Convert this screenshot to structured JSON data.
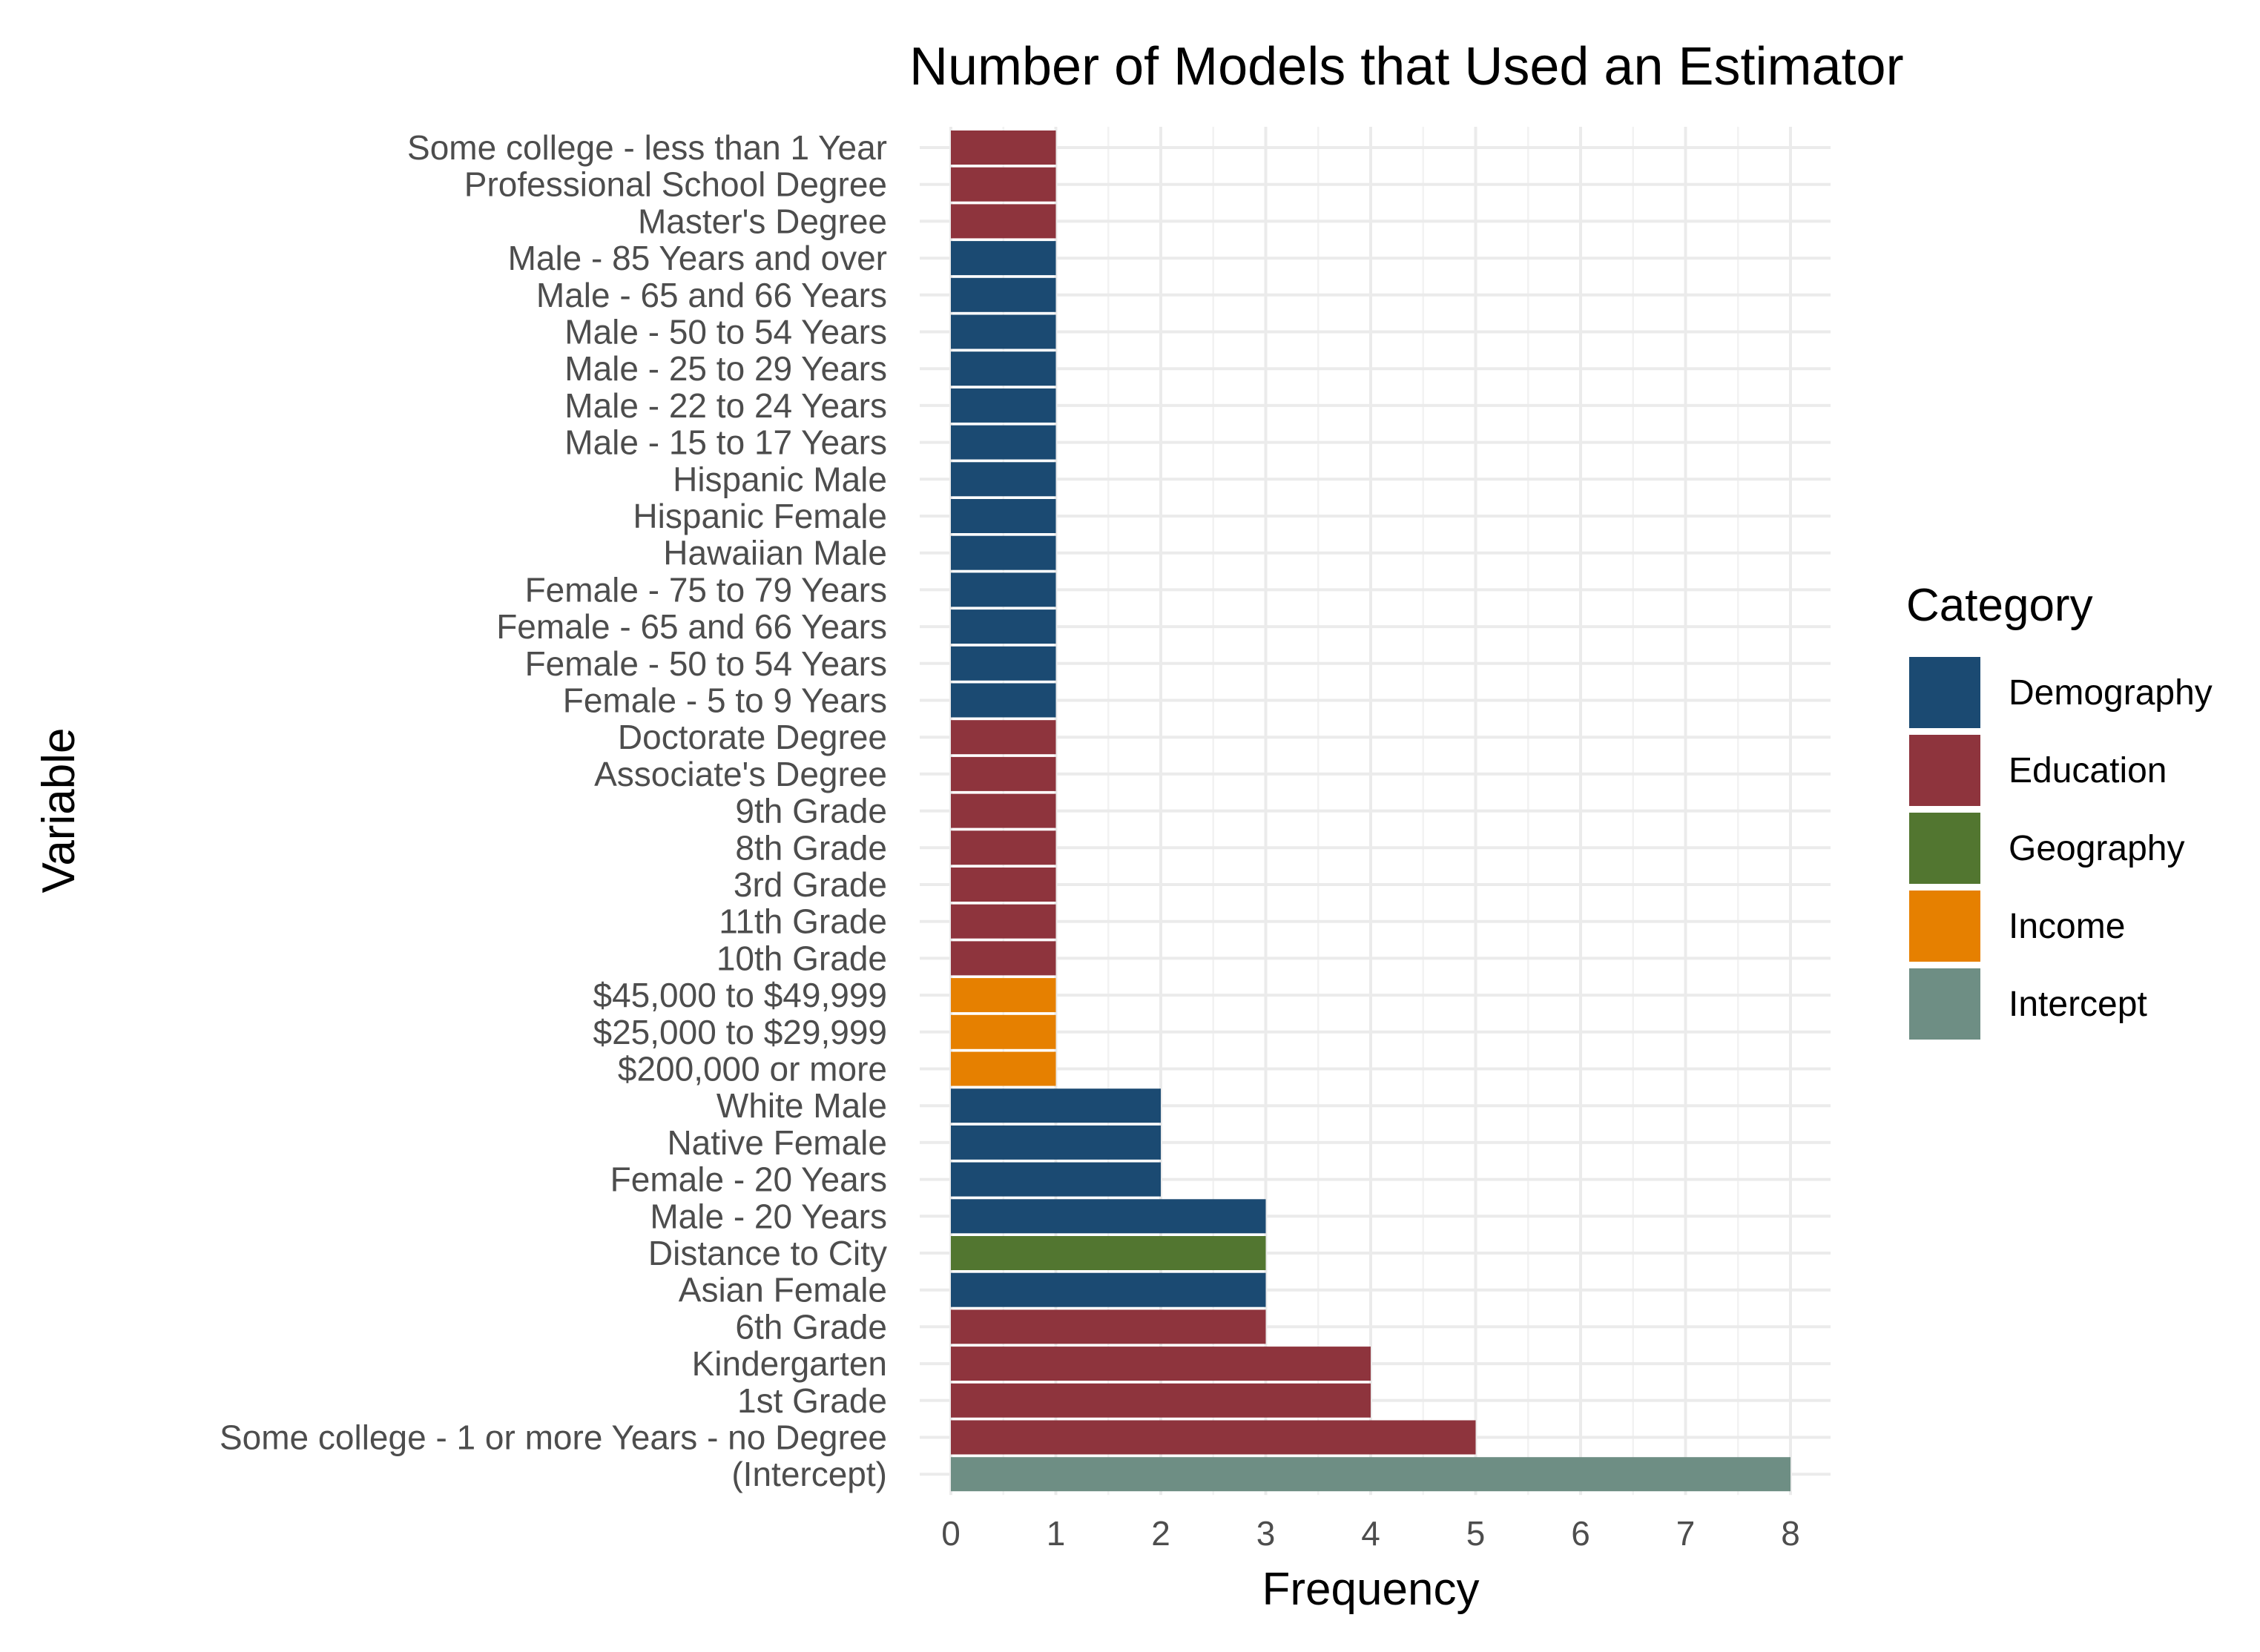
{
  "chart_data": {
    "type": "bar",
    "orientation": "horizontal",
    "title": "Number of Models that Used an Estimator",
    "xlabel": "Frequency",
    "ylabel": "Variable",
    "xlim": [
      0,
      8
    ],
    "xticks": [
      "0",
      "1",
      "2",
      "3",
      "4",
      "5",
      "6",
      "7",
      "8"
    ],
    "grid": true,
    "legend": {
      "title": "Category",
      "position": "right",
      "items": [
        {
          "label": "Demography",
          "color": "#1b4a72"
        },
        {
          "label": "Education",
          "color": "#8e343d"
        },
        {
          "label": "Geography",
          "color": "#527630"
        },
        {
          "label": "Income",
          "color": "#e68000"
        },
        {
          "label": "Intercept",
          "color": "#6e8e84"
        }
      ]
    },
    "bars": [
      {
        "label": "Some college - less than 1 Year",
        "value": 1,
        "category": "Education"
      },
      {
        "label": "Professional School Degree",
        "value": 1,
        "category": "Education"
      },
      {
        "label": "Master's Degree",
        "value": 1,
        "category": "Education"
      },
      {
        "label": "Male - 85 Years and over",
        "value": 1,
        "category": "Demography"
      },
      {
        "label": "Male - 65 and 66 Years",
        "value": 1,
        "category": "Demography"
      },
      {
        "label": "Male - 50 to 54 Years",
        "value": 1,
        "category": "Demography"
      },
      {
        "label": "Male - 25 to 29 Years",
        "value": 1,
        "category": "Demography"
      },
      {
        "label": "Male - 22 to 24 Years",
        "value": 1,
        "category": "Demography"
      },
      {
        "label": "Male - 15 to 17 Years",
        "value": 1,
        "category": "Demography"
      },
      {
        "label": "Hispanic Male",
        "value": 1,
        "category": "Demography"
      },
      {
        "label": "Hispanic Female",
        "value": 1,
        "category": "Demography"
      },
      {
        "label": "Hawaiian Male",
        "value": 1,
        "category": "Demography"
      },
      {
        "label": "Female - 75 to 79 Years",
        "value": 1,
        "category": "Demography"
      },
      {
        "label": "Female - 65 and 66 Years",
        "value": 1,
        "category": "Demography"
      },
      {
        "label": "Female - 50 to 54 Years",
        "value": 1,
        "category": "Demography"
      },
      {
        "label": "Female - 5 to 9 Years",
        "value": 1,
        "category": "Demography"
      },
      {
        "label": "Doctorate Degree",
        "value": 1,
        "category": "Education"
      },
      {
        "label": "Associate's Degree",
        "value": 1,
        "category": "Education"
      },
      {
        "label": "9th Grade",
        "value": 1,
        "category": "Education"
      },
      {
        "label": "8th Grade",
        "value": 1,
        "category": "Education"
      },
      {
        "label": "3rd Grade",
        "value": 1,
        "category": "Education"
      },
      {
        "label": "11th Grade",
        "value": 1,
        "category": "Education"
      },
      {
        "label": "10th Grade",
        "value": 1,
        "category": "Education"
      },
      {
        "label": "$45,000 to $49,999",
        "value": 1,
        "category": "Income"
      },
      {
        "label": "$25,000 to $29,999",
        "value": 1,
        "category": "Income"
      },
      {
        "label": "$200,000 or more",
        "value": 1,
        "category": "Income"
      },
      {
        "label": "White Male",
        "value": 2,
        "category": "Demography"
      },
      {
        "label": "Native Female",
        "value": 2,
        "category": "Demography"
      },
      {
        "label": "Female - 20 Years",
        "value": 2,
        "category": "Demography"
      },
      {
        "label": "Male - 20 Years",
        "value": 3,
        "category": "Demography"
      },
      {
        "label": "Distance to City",
        "value": 3,
        "category": "Geography"
      },
      {
        "label": "Asian Female",
        "value": 3,
        "category": "Demography"
      },
      {
        "label": "6th Grade",
        "value": 3,
        "category": "Education"
      },
      {
        "label": "Kindergarten",
        "value": 4,
        "category": "Education"
      },
      {
        "label": "1st Grade",
        "value": 4,
        "category": "Education"
      },
      {
        "label": "Some college - 1 or more Years - no Degree",
        "value": 5,
        "category": "Education"
      },
      {
        "label": "(Intercept)",
        "value": 8,
        "category": "Intercept"
      }
    ]
  }
}
